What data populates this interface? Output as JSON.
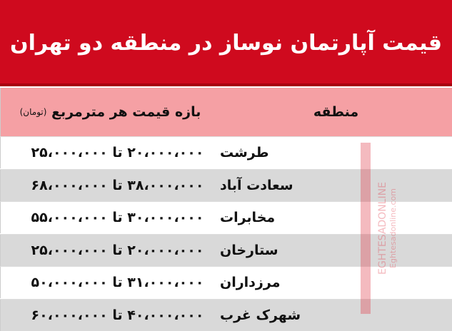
{
  "title": "قیمت آپارتمان نوساز در منطقه دو تهران",
  "header": {
    "region": "منطقه",
    "price": "بازه قیمت هر مترمربع",
    "unit": "(تومان)"
  },
  "rows": [
    {
      "region": "طرشت",
      "price": "۲۰،۰۰۰،۰۰۰ تا ۲۵،۰۰۰،۰۰۰"
    },
    {
      "region": "سعادت آباد",
      "price": "۳۸،۰۰۰،۰۰۰ تا ۶۸،۰۰۰،۰۰۰"
    },
    {
      "region": "مخابرات",
      "price": "۳۰،۰۰۰،۰۰۰ تا ۵۵،۰۰۰،۰۰۰"
    },
    {
      "region": "ستارخان",
      "price": "۲۰،۰۰۰،۰۰۰ تا ۲۵،۰۰۰،۰۰۰"
    },
    {
      "region": "مرزداران",
      "price": "۳۱،۰۰۰،۰۰۰ تا ۵۰،۰۰۰،۰۰۰"
    },
    {
      "region": "شهرک غرب",
      "price": "۴۰،۰۰۰،۰۰۰ تا ۶۰،۰۰۰،۰۰۰"
    }
  ],
  "watermark": "Eghtesadonline",
  "colors": {
    "title_bg": "#cf0a1e",
    "header_bg": "#f5a0a4",
    "alt_row": "#d9d9d9"
  }
}
